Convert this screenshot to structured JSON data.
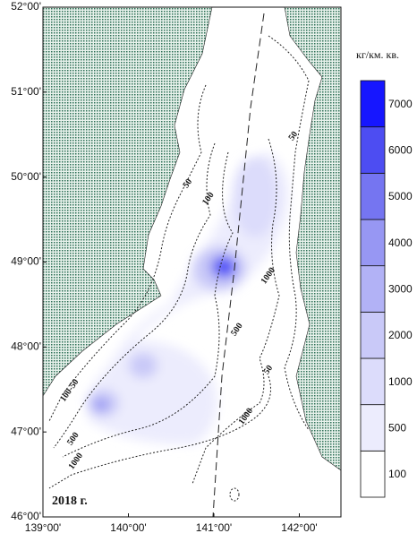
{
  "map": {
    "year_label": "2018 г.",
    "lat_labels": [
      "52°00'",
      "51°00'",
      "50°00'",
      "49°00'",
      "48°00'",
      "47°00'",
      "46°00'"
    ],
    "lon_labels": [
      "139°00'",
      "140°00'",
      "141°00'",
      "142°00'"
    ],
    "contour_labels": [
      "50",
      "100",
      "50",
      "1000",
      "500",
      "50",
      "1000",
      "100-50",
      "500",
      "1000"
    ],
    "colorbar": {
      "unit": "кг/км. кв.",
      "levels": [
        100,
        500,
        1000,
        2000,
        3000,
        4000,
        5000,
        6000,
        7000
      ],
      "colors": [
        "#ffffff",
        "#ececfd",
        "#dcdcfb",
        "#c9c9f8",
        "#b2b2f6",
        "#9797f3",
        "#7575f1",
        "#4d4df2",
        "#1616ff"
      ]
    }
  }
}
